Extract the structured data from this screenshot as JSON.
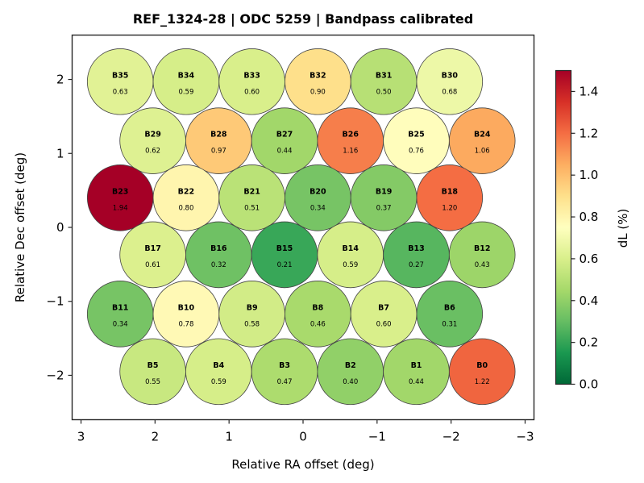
{
  "chart_data": {
    "type": "scatter",
    "subtype": "beam-footprint",
    "title": "REF_1324-28  |  ODC 5259  |  Bandpass calibrated",
    "xlabel": "Relative RA offset (deg)",
    "ylabel": "Relative Dec offset (deg)",
    "xlim": [
      3.12,
      -3.12
    ],
    "ylim": [
      -2.6,
      2.6
    ],
    "xticks": [
      3,
      2,
      1,
      0,
      -1,
      -2,
      -3
    ],
    "xtick_labels": [
      "3",
      "2",
      "1",
      "0",
      "−1",
      "−2",
      "−3"
    ],
    "yticks": [
      2,
      1,
      0,
      -1,
      -2
    ],
    "ytick_labels": [
      "2",
      "1",
      "0",
      "−1",
      "−2"
    ],
    "grid": false,
    "beam_radius_deg": 0.445,
    "colorbar": {
      "label": "dL  (%)",
      "colormap": "RdYlGn_r",
      "range": [
        0.0,
        1.5
      ],
      "ticks": [
        0.0,
        0.2,
        0.4,
        0.6,
        0.8,
        1.0,
        1.2,
        1.4
      ],
      "tick_labels": [
        "0.0",
        "0.2",
        "0.4",
        "0.6",
        "0.8",
        "1.0",
        "1.2",
        "1.4"
      ],
      "placement": "right"
    },
    "beams": [
      {
        "name": "B35",
        "ra": 2.47,
        "dec": 1.97,
        "value": 0.63
      },
      {
        "name": "B34",
        "ra": 1.58,
        "dec": 1.97,
        "value": 0.59
      },
      {
        "name": "B33",
        "ra": 0.69,
        "dec": 1.97,
        "value": 0.6
      },
      {
        "name": "B32",
        "ra": -0.2,
        "dec": 1.97,
        "value": 0.9
      },
      {
        "name": "B31",
        "ra": -1.09,
        "dec": 1.97,
        "value": 0.5
      },
      {
        "name": "B30",
        "ra": -1.98,
        "dec": 1.97,
        "value": 0.68
      },
      {
        "name": "B29",
        "ra": 2.03,
        "dec": 1.17,
        "value": 0.62
      },
      {
        "name": "B28",
        "ra": 1.14,
        "dec": 1.17,
        "value": 0.97
      },
      {
        "name": "B27",
        "ra": 0.25,
        "dec": 1.17,
        "value": 0.44
      },
      {
        "name": "B26",
        "ra": -0.64,
        "dec": 1.17,
        "value": 1.16
      },
      {
        "name": "B25",
        "ra": -1.53,
        "dec": 1.17,
        "value": 0.76
      },
      {
        "name": "B24",
        "ra": -2.42,
        "dec": 1.17,
        "value": 1.06
      },
      {
        "name": "B23",
        "ra": 2.47,
        "dec": 0.4,
        "value": 1.94
      },
      {
        "name": "B22",
        "ra": 1.58,
        "dec": 0.4,
        "value": 0.8
      },
      {
        "name": "B21",
        "ra": 0.69,
        "dec": 0.4,
        "value": 0.51
      },
      {
        "name": "B20",
        "ra": -0.2,
        "dec": 0.4,
        "value": 0.34
      },
      {
        "name": "B19",
        "ra": -1.09,
        "dec": 0.4,
        "value": 0.37
      },
      {
        "name": "B18",
        "ra": -1.98,
        "dec": 0.4,
        "value": 1.2
      },
      {
        "name": "B17",
        "ra": 2.03,
        "dec": -0.37,
        "value": 0.61
      },
      {
        "name": "B16",
        "ra": 1.14,
        "dec": -0.37,
        "value": 0.32
      },
      {
        "name": "B15",
        "ra": 0.25,
        "dec": -0.37,
        "value": 0.21
      },
      {
        "name": "B14",
        "ra": -0.64,
        "dec": -0.37,
        "value": 0.59
      },
      {
        "name": "B13",
        "ra": -1.53,
        "dec": -0.37,
        "value": 0.27
      },
      {
        "name": "B12",
        "ra": -2.42,
        "dec": -0.37,
        "value": 0.43
      },
      {
        "name": "B11",
        "ra": 2.47,
        "dec": -1.17,
        "value": 0.34
      },
      {
        "name": "B10",
        "ra": 1.58,
        "dec": -1.17,
        "value": 0.78
      },
      {
        "name": "B9",
        "ra": 0.69,
        "dec": -1.17,
        "value": 0.58
      },
      {
        "name": "B8",
        "ra": -0.2,
        "dec": -1.17,
        "value": 0.46
      },
      {
        "name": "B7",
        "ra": -1.09,
        "dec": -1.17,
        "value": 0.6
      },
      {
        "name": "B6",
        "ra": -1.98,
        "dec": -1.17,
        "value": 0.31
      },
      {
        "name": "B5",
        "ra": 2.03,
        "dec": -1.95,
        "value": 0.55
      },
      {
        "name": "B4",
        "ra": 1.14,
        "dec": -1.95,
        "value": 0.59
      },
      {
        "name": "B3",
        "ra": 0.25,
        "dec": -1.95,
        "value": 0.47
      },
      {
        "name": "B2",
        "ra": -0.64,
        "dec": -1.95,
        "value": 0.4
      },
      {
        "name": "B1",
        "ra": -1.53,
        "dec": -1.95,
        "value": 0.44
      },
      {
        "name": "B0",
        "ra": -2.42,
        "dec": -1.95,
        "value": 1.22
      }
    ]
  }
}
